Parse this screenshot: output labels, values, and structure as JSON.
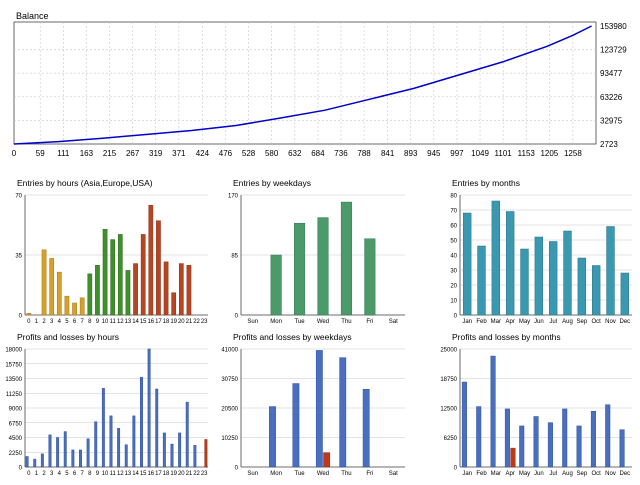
{
  "balance": {
    "title": "Balance",
    "x_ticks": [
      "0",
      "59",
      "111",
      "163",
      "215",
      "267",
      "319",
      "371",
      "424",
      "476",
      "528",
      "580",
      "632",
      "684",
      "736",
      "788",
      "841",
      "893",
      "945",
      "997",
      "1049",
      "1101",
      "1153",
      "1205",
      "1258"
    ],
    "y_ticks": [
      "153980",
      "123729",
      "93477",
      "63226",
      "32975",
      "2723"
    ],
    "line_color": "#0000cc"
  },
  "chart_data": [
    {
      "type": "line",
      "title": "Balance",
      "ylim": [
        2723,
        153980
      ],
      "xlim": [
        0,
        1310
      ],
      "x": [
        0,
        100,
        200,
        300,
        400,
        500,
        600,
        700,
        800,
        900,
        1000,
        1100,
        1200,
        1258,
        1300
      ],
      "y": [
        2723,
        5800,
        10200,
        15000,
        20000,
        26500,
        36000,
        46000,
        60000,
        74000,
        91000,
        108000,
        128000,
        142000,
        153980
      ],
      "grid": true
    },
    {
      "type": "bar",
      "title": "Entries by hours (Asia,Europe,USA)",
      "categories": [
        "0",
        "1",
        "2",
        "3",
        "4",
        "5",
        "6",
        "7",
        "8",
        "9",
        "10",
        "11",
        "12",
        "13",
        "14",
        "15",
        "16",
        "17",
        "18",
        "19",
        "20",
        "21",
        "22",
        "23"
      ],
      "values": [
        1,
        0,
        38,
        33,
        25,
        11,
        7,
        10,
        24,
        29,
        50,
        44,
        47,
        26,
        30,
        47,
        64,
        55,
        31,
        13,
        30,
        29,
        0,
        0
      ],
      "y_ticks": [
        "70",
        "35",
        "0"
      ],
      "ylim": [
        0,
        70
      ],
      "grid": true
    },
    {
      "type": "bar",
      "title": "Entries by weekdays",
      "categories": [
        "Sun",
        "Mon",
        "Tue",
        "Wed",
        "Thu",
        "Fri",
        "Sat"
      ],
      "values": [
        0,
        85,
        130,
        138,
        160,
        108,
        0
      ],
      "y_ticks": [
        "170",
        "85",
        "0"
      ],
      "ylim": [
        0,
        170
      ],
      "grid": true
    },
    {
      "type": "bar",
      "title": "Entries by months",
      "categories": [
        "Jan",
        "Feb",
        "Mar",
        "Apr",
        "May",
        "Jun",
        "Jul",
        "Aug",
        "Sep",
        "Oct",
        "Nov",
        "Dec"
      ],
      "values": [
        68,
        46,
        76,
        69,
        44,
        52,
        49,
        56,
        38,
        33,
        59,
        28
      ],
      "y_ticks": [
        "80",
        "70",
        "60",
        "50",
        "40",
        "30",
        "20",
        "10",
        "0"
      ],
      "ylim": [
        0,
        80
      ],
      "grid": true
    },
    {
      "type": "bar",
      "title": "Profits and losses by hours",
      "categories": [
        "0",
        "1",
        "2",
        "3",
        "4",
        "5",
        "6",
        "7",
        "8",
        "9",
        "10",
        "11",
        "12",
        "13",
        "14",
        "15",
        "16",
        "17",
        "18",
        "19",
        "20",
        "21",
        "22",
        "23"
      ],
      "series": [
        {
          "name": "profit",
          "values": [
            1600,
            1200,
            2000,
            4900,
            4500,
            5400,
            2600,
            2600,
            4300,
            6900,
            12000,
            7800,
            5900,
            3400,
            7800,
            13700,
            18000,
            11900,
            5200,
            3500,
            5200,
            9900,
            3300,
            0
          ]
        },
        {
          "name": "loss",
          "values": [
            0,
            0,
            0,
            0,
            0,
            0,
            0,
            0,
            0,
            0,
            0,
            0,
            0,
            0,
            0,
            0,
            0,
            0,
            0,
            0,
            0,
            0,
            0,
            4200
          ]
        }
      ],
      "y_ticks": [
        "18000",
        "15750",
        "13500",
        "11250",
        "9000",
        "6750",
        "4500",
        "2250",
        "0"
      ],
      "ylim": [
        0,
        18000
      ],
      "grid": true
    },
    {
      "type": "bar",
      "title": "Profits and losses by weekdays",
      "categories": [
        "Sun",
        "Mon",
        "Tue",
        "Wed",
        "Thu",
        "Fri",
        "Sat"
      ],
      "series": [
        {
          "name": "profit",
          "values": [
            0,
            21000,
            29000,
            40500,
            38000,
            27000,
            0
          ]
        },
        {
          "name": "loss",
          "values": [
            0,
            0,
            0,
            5000,
            0,
            0,
            0
          ]
        }
      ],
      "y_ticks": [
        "41000",
        "30750",
        "20500",
        "10250",
        "0"
      ],
      "ylim": [
        0,
        41000
      ],
      "grid": true
    },
    {
      "type": "bar",
      "title": "Profits and losses by months",
      "categories": [
        "Jan",
        "Feb",
        "Mar",
        "Apr",
        "May",
        "Jun",
        "Jul",
        "Aug",
        "Sep",
        "Oct",
        "Nov",
        "Dec"
      ],
      "series": [
        {
          "name": "profit",
          "values": [
            18000,
            12800,
            23500,
            12300,
            8700,
            10700,
            9400,
            12300,
            8700,
            11800,
            13200,
            7900
          ]
        },
        {
          "name": "loss",
          "values": [
            0,
            0,
            0,
            4000,
            0,
            0,
            0,
            0,
            0,
            0,
            0,
            0
          ]
        }
      ],
      "y_ticks": [
        "25000",
        "18750",
        "12500",
        "6250",
        "0"
      ],
      "ylim": [
        0,
        25000
      ],
      "grid": true
    }
  ],
  "colors": {
    "hours_gradient": [
      "#e0a030",
      "#c9a030",
      "#4a8f2a",
      "#3f8f2a",
      "#c04020",
      "#b84020"
    ],
    "weekday_bar": "#4a9a6a",
    "month_bar": "#3a98b0",
    "profit_bar": "#4a6fbf",
    "loss_bar": "#c03a1a",
    "grid": "#c8c8c8",
    "axis": "#444444"
  }
}
